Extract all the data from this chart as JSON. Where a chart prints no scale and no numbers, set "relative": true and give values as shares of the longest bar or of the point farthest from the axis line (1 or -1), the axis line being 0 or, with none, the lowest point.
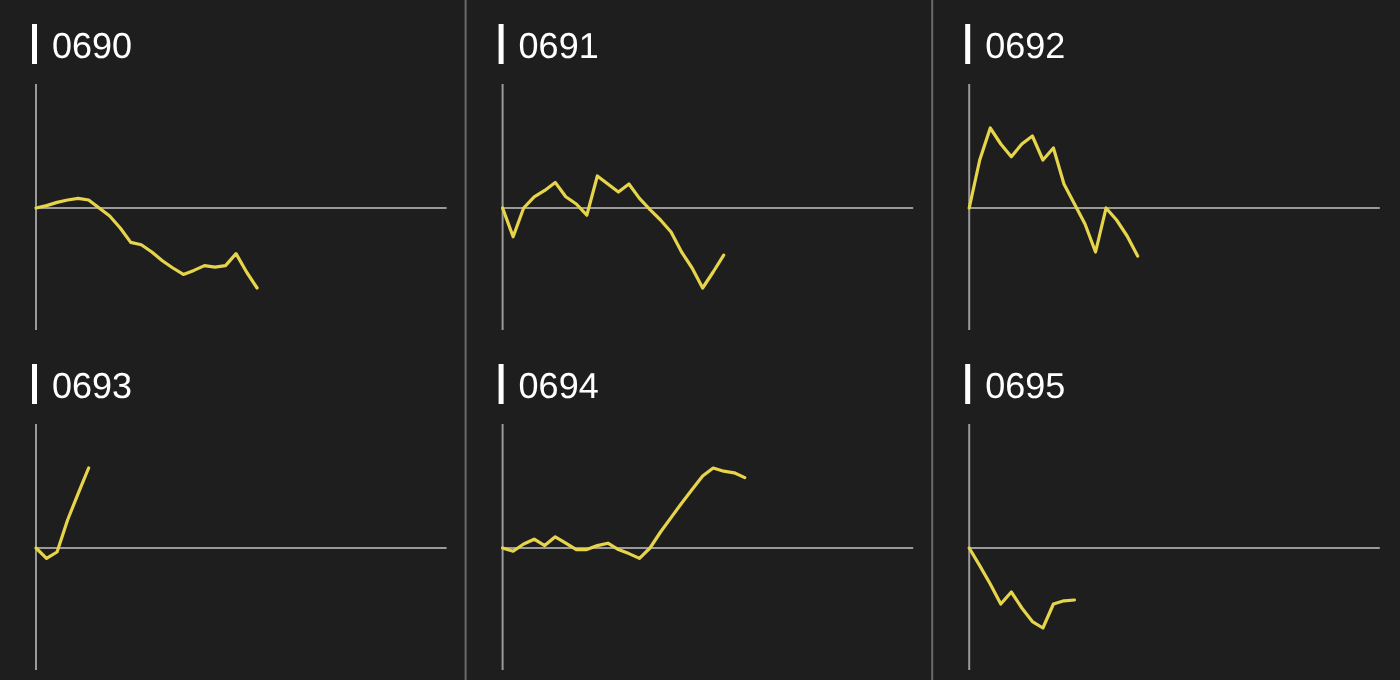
{
  "chart_data": [
    {
      "type": "line",
      "title": "0690",
      "relative": true,
      "color": "#e6d44a",
      "categories": [
        null,
        null,
        null,
        null,
        null,
        null,
        null,
        null,
        null,
        null,
        null,
        null,
        null,
        null,
        null,
        null,
        null,
        null,
        null,
        null,
        null,
        null,
        null,
        null,
        null,
        null,
        null,
        null,
        null,
        null,
        null,
        null,
        null,
        null,
        null,
        null,
        null,
        null,
        null,
        null
      ],
      "values": [
        0,
        0.03,
        0.07,
        0.1,
        0.12,
        0.1,
        0.0,
        -0.1,
        -0.25,
        -0.43,
        -0.46,
        -0.55,
        -0.66,
        -0.75,
        -0.83,
        -0.78,
        -0.72,
        -0.74,
        -0.72,
        -0.57,
        -0.8,
        -1,
        null,
        null,
        null,
        null,
        null,
        null,
        null,
        null,
        null,
        null,
        null,
        null,
        null,
        null,
        null,
        null,
        null,
        null
      ]
    },
    {
      "type": "line",
      "title": "0691",
      "relative": true,
      "color": "#e6d44a",
      "categories": [
        null,
        null,
        null,
        null,
        null,
        null,
        null,
        null,
        null,
        null,
        null,
        null,
        null,
        null,
        null,
        null,
        null,
        null,
        null,
        null,
        null,
        null,
        null,
        null,
        null,
        null,
        null,
        null,
        null,
        null,
        null,
        null,
        null,
        null,
        null,
        null,
        null,
        null,
        null,
        null
      ],
      "values": [
        0,
        -0.36,
        0,
        0.14,
        0.22,
        0.32,
        0.14,
        0.05,
        -0.09,
        0.4,
        0.3,
        0.2,
        0.3,
        0.12,
        -0.02,
        -0.15,
        -0.3,
        -0.55,
        -0.75,
        -1,
        -0.8,
        -0.59,
        null,
        null,
        null,
        null,
        null,
        null,
        null,
        null,
        null,
        null,
        null,
        null,
        null,
        null,
        null,
        null,
        null,
        null
      ]
    },
    {
      "type": "line",
      "title": "0692",
      "relative": true,
      "color": "#e6d44a",
      "categories": [
        null,
        null,
        null,
        null,
        null,
        null,
        null,
        null,
        null,
        null,
        null,
        null,
        null,
        null,
        null,
        null,
        null,
        null,
        null,
        null,
        null,
        null,
        null,
        null,
        null,
        null,
        null,
        null,
        null,
        null,
        null,
        null,
        null,
        null,
        null,
        null,
        null,
        null,
        null,
        null
      ],
      "values": [
        0,
        0.6,
        1,
        0.8,
        0.64,
        0.8,
        0.9,
        0.6,
        0.75,
        0.3,
        0.05,
        -0.2,
        -0.55,
        0,
        -0.15,
        -0.35,
        -0.6,
        null,
        null,
        null,
        null,
        null,
        null,
        null,
        null,
        null,
        null,
        null,
        null,
        null,
        null,
        null,
        null,
        null,
        null,
        null,
        null,
        null,
        null,
        null
      ]
    },
    {
      "type": "line",
      "title": "0693",
      "relative": true,
      "color": "#e6d44a",
      "categories": [
        null,
        null,
        null,
        null,
        null,
        null,
        null,
        null,
        null,
        null,
        null,
        null,
        null,
        null,
        null,
        null,
        null,
        null,
        null,
        null,
        null,
        null,
        null,
        null,
        null,
        null,
        null,
        null,
        null,
        null,
        null,
        null,
        null,
        null,
        null,
        null,
        null,
        null,
        null,
        null
      ],
      "values": [
        0,
        -0.13,
        -0.05,
        0.35,
        0.68,
        1,
        null,
        null,
        null,
        null,
        null,
        null,
        null,
        null,
        null,
        null,
        null,
        null,
        null,
        null,
        null,
        null,
        null,
        null,
        null,
        null,
        null,
        null,
        null,
        null,
        null,
        null,
        null,
        null,
        null,
        null,
        null,
        null,
        null,
        null
      ]
    },
    {
      "type": "line",
      "title": "0694",
      "relative": true,
      "color": "#e6d44a",
      "categories": [
        null,
        null,
        null,
        null,
        null,
        null,
        null,
        null,
        null,
        null,
        null,
        null,
        null,
        null,
        null,
        null,
        null,
        null,
        null,
        null,
        null,
        null,
        null,
        null,
        null,
        null,
        null,
        null,
        null,
        null,
        null,
        null,
        null,
        null,
        null,
        null,
        null,
        null,
        null,
        null
      ],
      "values": [
        0,
        -0.04,
        0.05,
        0.11,
        0.03,
        0.14,
        0.06,
        -0.02,
        -0.02,
        0.03,
        0.06,
        -0.02,
        -0.07,
        -0.13,
        0,
        0.2,
        0.38,
        0.56,
        0.73,
        0.9,
        1,
        0.96,
        0.94,
        0.88,
        null,
        null,
        null,
        null,
        null,
        null,
        null,
        null,
        null,
        null,
        null,
        null,
        null,
        null,
        null,
        null
      ]
    },
    {
      "type": "line",
      "title": "0695",
      "relative": true,
      "color": "#e6d44a",
      "categories": [
        null,
        null,
        null,
        null,
        null,
        null,
        null,
        null,
        null,
        null,
        null,
        null,
        null,
        null,
        null,
        null,
        null,
        null,
        null,
        null,
        null,
        null,
        null,
        null,
        null,
        null,
        null,
        null,
        null,
        null,
        null,
        null,
        null,
        null,
        null,
        null,
        null,
        null,
        null,
        null
      ],
      "values": [
        0,
        -0.22,
        -0.45,
        -0.7,
        -0.55,
        -0.75,
        -0.92,
        -1,
        -0.7,
        -0.66,
        -0.65,
        null,
        null,
        null,
        null,
        null,
        null,
        null,
        null,
        null,
        null,
        null,
        null,
        null,
        null,
        null,
        null,
        null,
        null,
        null,
        null,
        null,
        null,
        null,
        null,
        null,
        null,
        null,
        null,
        null
      ]
    }
  ]
}
